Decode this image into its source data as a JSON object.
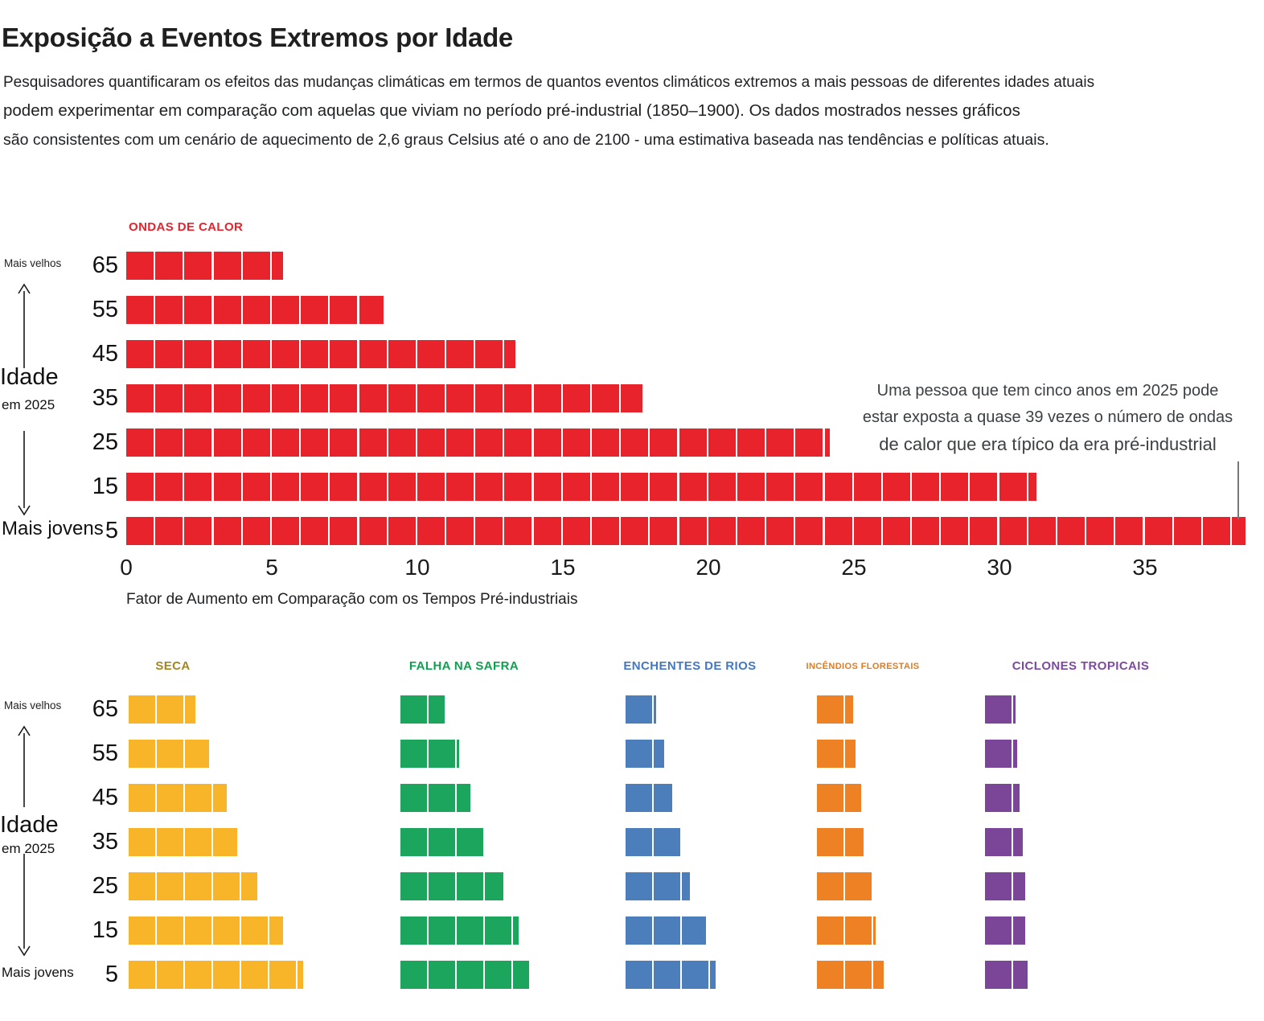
{
  "header": {
    "title": "Exposição a Eventos Extremos por Idade",
    "intro_lines": [
      "Pesquisadores quantificaram os efeitos das mudanças climáticas em termos de quantos eventos climáticos extremos a mais pessoas de diferentes idades atuais",
      "podem experimentar em comparação com aquelas que viviam no período pré-industrial (1850–1900). Os dados mostrados nesses gráficos",
      "são consistentes com um cenário de aquecimento de 2,6 graus Celsius até o ano de 2100 - uma estimativa baseada nas tendências e políticas atuais."
    ]
  },
  "side_labels": {
    "older": "Mais velhos",
    "age_title": "Idade",
    "age_subtitle": "em 2025",
    "younger": "Mais jovens"
  },
  "ages": [
    "65",
    "55",
    "45",
    "35",
    "25",
    "15",
    "5"
  ],
  "axis": {
    "ticks": [
      0,
      5,
      10,
      15,
      20,
      25,
      30,
      35
    ],
    "label": "Fator de Aumento em Comparação com os Tempos Pré-industriais"
  },
  "annotation": {
    "lines": [
      "Uma pessoa que tem cinco anos em 2025 pode",
      "estar exposta a quase 39 vezes o número de ondas",
      "de calor que era típico da era pré-industrial"
    ]
  },
  "chart_data": [
    {
      "id": "ondas-de-calor",
      "type": "bar",
      "style": "unit-square-waffle-bars",
      "title": "ONDAS DE CALOR",
      "color": "#E8232B",
      "label_color": "#E8232B",
      "categories": [
        "65",
        "55",
        "45",
        "35",
        "25",
        "15",
        "5"
      ],
      "values": [
        5.4,
        8.9,
        13.4,
        17.8,
        24.2,
        31.3,
        38.5
      ],
      "xlabel": "Fator de Aumento em Comparação com os Tempos Pré-industriais",
      "xticks": [
        0,
        5,
        10,
        15,
        20,
        25,
        30,
        35
      ],
      "xlim": [
        0,
        39
      ],
      "grid": false,
      "legend_position": "none",
      "annotation": "Uma pessoa que tem cinco anos em 2025 pode estar exposta a quase 39 vezes o número de ondas de calor que era típico da era pré-industrial"
    },
    {
      "id": "seca",
      "type": "bar",
      "style": "unit-square-waffle-bars",
      "title": "SECA",
      "color": "#F8B52A",
      "label_color": "#A3861F",
      "categories": [
        "65",
        "55",
        "45",
        "35",
        "25",
        "15",
        "5"
      ],
      "values": [
        2.4,
        2.9,
        3.5,
        3.9,
        4.6,
        5.5,
        6.2
      ]
    },
    {
      "id": "falha-na-safra",
      "type": "bar",
      "style": "unit-square-waffle-bars",
      "title": "FALHA NA SAFRA",
      "color": "#1CA65D",
      "label_color": "#0FA04F",
      "categories": [
        "65",
        "55",
        "45",
        "35",
        "25",
        "15",
        "5"
      ],
      "values": [
        1.6,
        2.1,
        2.5,
        3.0,
        3.7,
        4.2,
        4.6
      ]
    },
    {
      "id": "enchentes-de-rios",
      "type": "bar",
      "style": "unit-square-waffle-bars",
      "title": "ENCHENTES DE RIOS",
      "color": "#4C7EBB",
      "label_color": "#4377C6",
      "categories": [
        "65",
        "55",
        "45",
        "35",
        "25",
        "15",
        "5"
      ],
      "values": [
        1.1,
        1.4,
        1.7,
        2.0,
        2.3,
        2.9,
        3.2
      ]
    },
    {
      "id": "incendios-florestais",
      "type": "bar",
      "style": "unit-square-waffle-bars",
      "title": "INCÊNDIOS FLORESTAIS",
      "color": "#EF8125",
      "label_color": "#E37A1E",
      "categories": [
        "65",
        "55",
        "45",
        "35",
        "25",
        "15",
        "5"
      ],
      "values": [
        1.3,
        1.4,
        1.6,
        1.7,
        2.0,
        2.1,
        2.4
      ]
    },
    {
      "id": "ciclones-tropicais",
      "type": "bar",
      "style": "unit-square-waffle-bars",
      "title": "CICLONES TROPICAIS",
      "color": "#7B4697",
      "label_color": "#7C4AA0",
      "categories": [
        "65",
        "55",
        "45",
        "35",
        "25",
        "15",
        "5"
      ],
      "values": [
        1.05,
        1.15,
        1.25,
        1.35,
        1.45,
        1.45,
        1.55
      ]
    }
  ]
}
